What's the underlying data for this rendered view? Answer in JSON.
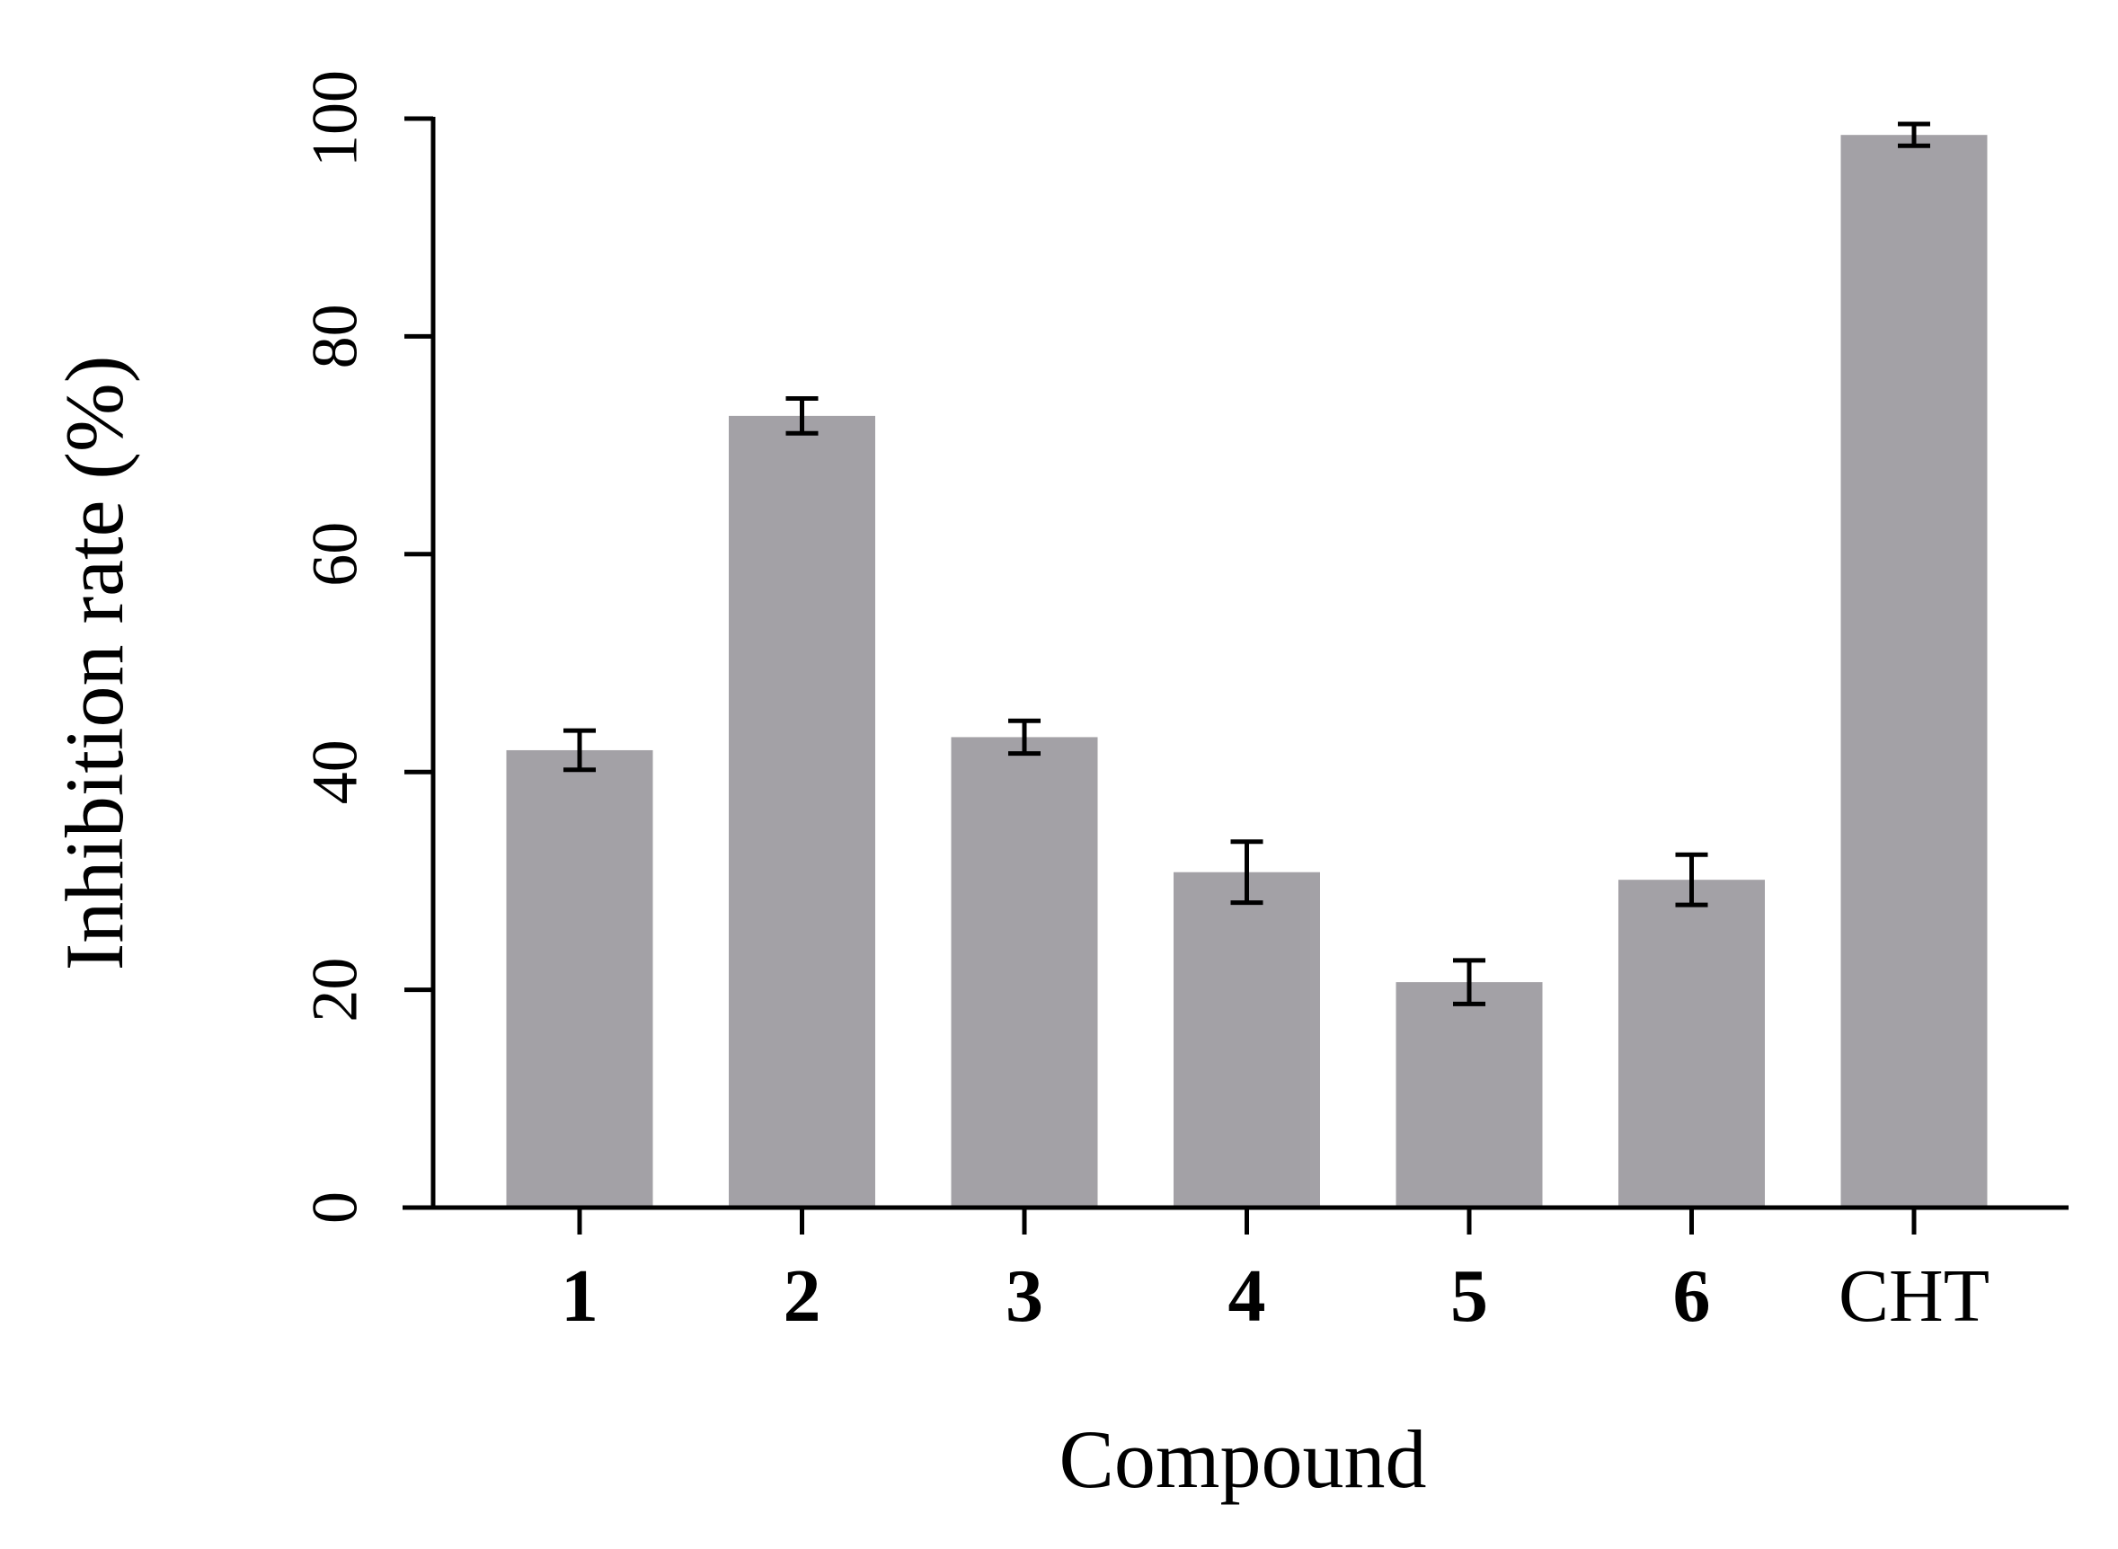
{
  "chart_data": {
    "type": "bar",
    "xlabel": "Compound",
    "ylabel": "Inhibition rate (%)",
    "ylim": [
      0,
      100
    ],
    "yticks": [
      "0",
      "20",
      "40",
      "60",
      "80",
      "100"
    ],
    "categories": [
      "1",
      "2",
      "3",
      "4",
      "5",
      "6",
      "CHT"
    ],
    "bold_categories": [
      true,
      true,
      true,
      true,
      true,
      true,
      false
    ],
    "values": [
      42.0,
      72.7,
      43.2,
      30.8,
      20.7,
      30.1,
      98.5
    ],
    "errors": [
      1.8,
      1.6,
      1.5,
      2.8,
      2.0,
      2.3,
      1.0
    ],
    "grid": false,
    "bar_color": "#a3a1a6",
    "axis_color": "#000000"
  }
}
